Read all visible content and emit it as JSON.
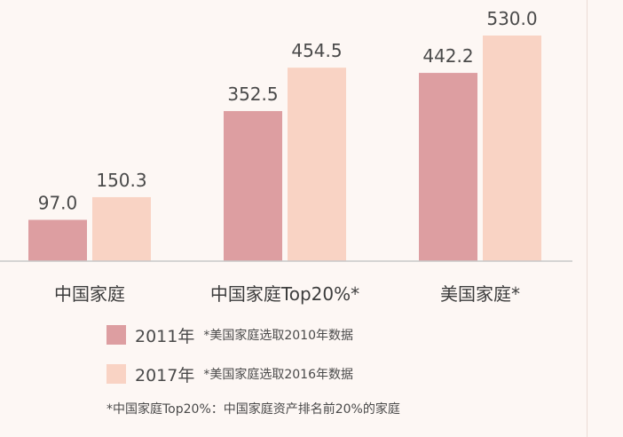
{
  "chart_data": {
    "type": "bar",
    "categories": [
      "中国家庭",
      "中国家庭Top20%*",
      "美国家庭*"
    ],
    "series": [
      {
        "name": "2011年",
        "note": "*美国家庭选取2010年数据",
        "color": "#dd9ea1",
        "values": [
          97.0,
          352.5,
          442.2
        ]
      },
      {
        "name": "2017年",
        "note": "*美国家庭选取2016年数据",
        "color": "#f9d3c4",
        "values": [
          150.3,
          454.5,
          530.0
        ]
      }
    ],
    "value_labels": [
      [
        "97.0",
        "352.5",
        "442.2"
      ],
      [
        "150.3",
        "454.5",
        "530.0"
      ]
    ],
    "ylim": [
      0,
      530
    ],
    "legend_position": "bottom-left"
  },
  "footnote": "*中国家庭Top20%：中国家庭资产排名前20%的家庭",
  "colors": {
    "background": "#fdf7f4",
    "axis": "#cccccc",
    "text": "#4a4a4a"
  }
}
